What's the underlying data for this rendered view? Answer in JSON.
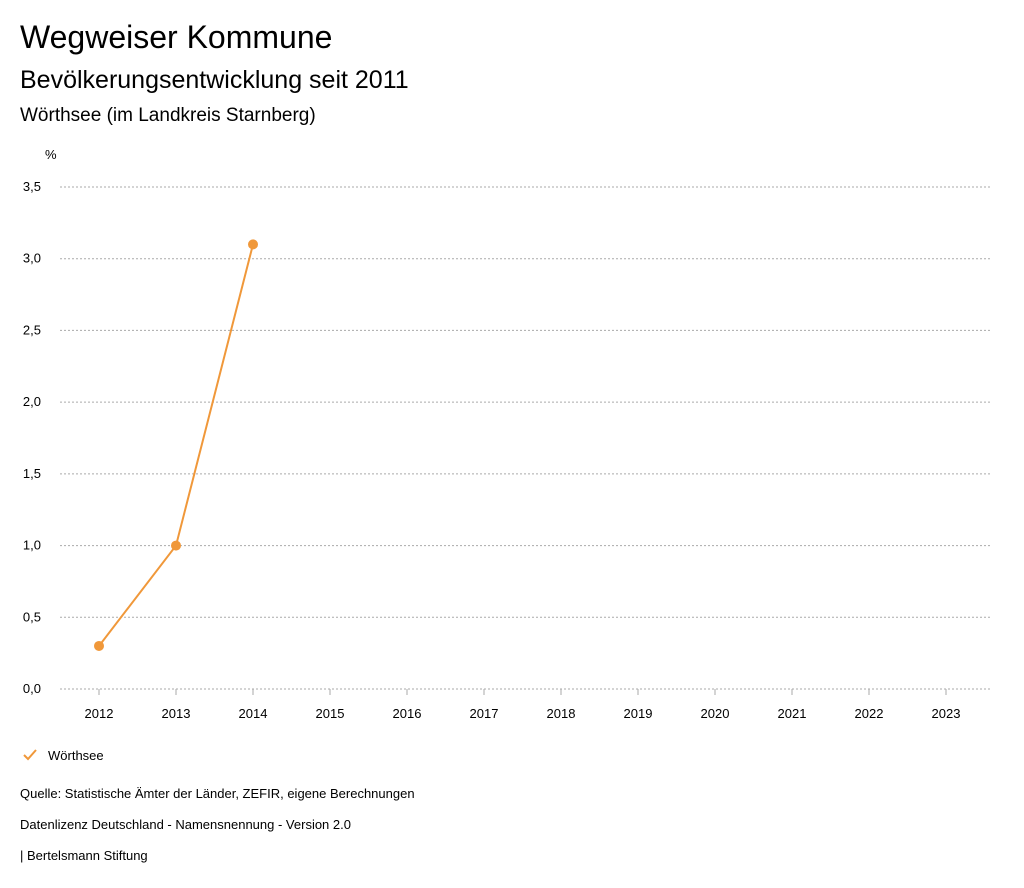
{
  "header": {
    "title": "Wegweiser Kommune",
    "subtitle": "Bevölkerungsentwicklung seit 2011",
    "region": "Wörthsee (im Landkreis Starnberg)"
  },
  "legend": {
    "label": "Wörthsee",
    "icon": "check-icon"
  },
  "footer": {
    "source": "Quelle: Statistische Ämter der Länder, ZEFIR, eigene Berechnungen",
    "license": "Datenlizenz Deutschland - Namensnennung - Version 2.0",
    "brand": "| Bertelsmann Stiftung"
  },
  "colors": {
    "series": "#F0983A",
    "grid": "#aaaaaa",
    "text": "#000000"
  },
  "chart_data": {
    "type": "line",
    "ylabel": "%",
    "ylim": [
      0,
      3.5
    ],
    "yticks": [
      "0,0",
      "0,5",
      "1,0",
      "1,5",
      "2,0",
      "2,5",
      "3,0",
      "3,5"
    ],
    "categories": [
      "2012",
      "2013",
      "2014",
      "2015",
      "2016",
      "2017",
      "2018",
      "2019",
      "2020",
      "2021",
      "2022",
      "2023"
    ],
    "series": [
      {
        "name": "Wörthsee",
        "values": [
          0.3,
          1.0,
          3.1,
          null,
          null,
          null,
          null,
          null,
          null,
          null,
          null,
          null
        ]
      }
    ],
    "grid": true,
    "legend_position": "bottom-left"
  }
}
